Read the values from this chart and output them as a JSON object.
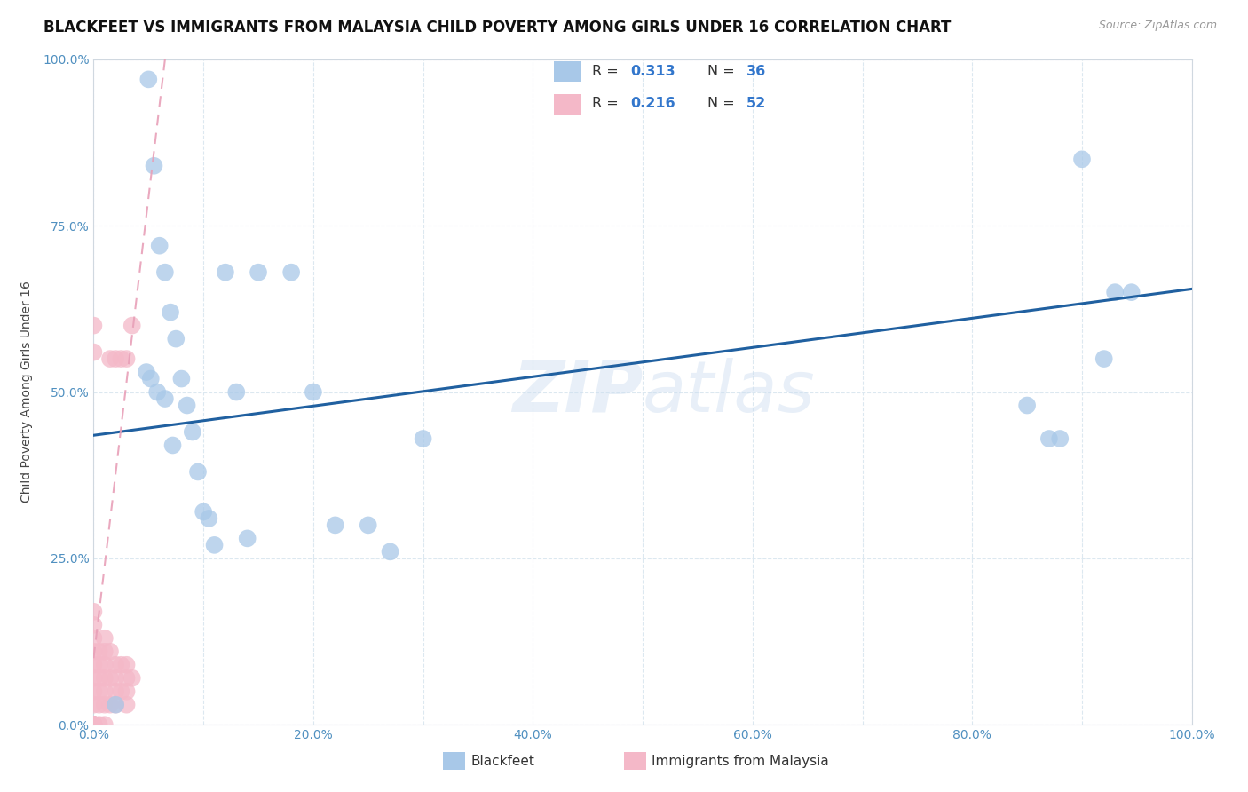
{
  "title": "BLACKFEET VS IMMIGRANTS FROM MALAYSIA CHILD POVERTY AMONG GIRLS UNDER 16 CORRELATION CHART",
  "source": "Source: ZipAtlas.com",
  "ylabel": "Child Poverty Among Girls Under 16",
  "xlim": [
    0,
    1.0
  ],
  "ylim": [
    0,
    1.0
  ],
  "xtick_labels": [
    "0.0%",
    "",
    "20.0%",
    "",
    "40.0%",
    "",
    "60.0%",
    "",
    "80.0%",
    "",
    "100.0%"
  ],
  "ytick_labels": [
    "0.0%",
    "25.0%",
    "50.0%",
    "75.0%",
    "100.0%"
  ],
  "ytick_positions": [
    0.0,
    0.25,
    0.5,
    0.75,
    1.0
  ],
  "xtick_positions": [
    0.0,
    0.1,
    0.2,
    0.3,
    0.4,
    0.5,
    0.6,
    0.7,
    0.8,
    0.9,
    1.0
  ],
  "color_blue": "#a8c8e8",
  "color_pink": "#f4b8c8",
  "color_trend_blue": "#2060a0",
  "color_trend_pink": "#e8a0b8",
  "watermark": "ZIPAtlas",
  "title_fontsize": 12,
  "axis_label_fontsize": 10,
  "tick_fontsize": 10,
  "blackfeet_x": [
    0.02,
    0.05,
    0.055,
    0.06,
    0.065,
    0.07,
    0.075,
    0.08,
    0.085,
    0.09,
    0.095,
    0.1,
    0.105,
    0.11,
    0.12,
    0.13,
    0.14,
    0.15,
    0.18,
    0.2,
    0.22,
    0.25,
    0.27,
    0.3,
    0.85,
    0.87,
    0.88,
    0.9,
    0.92,
    0.93,
    0.945,
    0.048,
    0.052,
    0.058,
    0.065,
    0.072
  ],
  "blackfeet_y": [
    0.03,
    0.97,
    0.84,
    0.72,
    0.68,
    0.62,
    0.58,
    0.52,
    0.48,
    0.44,
    0.38,
    0.32,
    0.31,
    0.27,
    0.68,
    0.5,
    0.28,
    0.68,
    0.68,
    0.5,
    0.3,
    0.3,
    0.26,
    0.43,
    0.48,
    0.43,
    0.43,
    0.85,
    0.55,
    0.65,
    0.65,
    0.53,
    0.52,
    0.5,
    0.49,
    0.42
  ],
  "malaysia_x": [
    0.0,
    0.0,
    0.0,
    0.0,
    0.0,
    0.0,
    0.0,
    0.0,
    0.0,
    0.0,
    0.0,
    0.0,
    0.0,
    0.0,
    0.0,
    0.0,
    0.0,
    0.0,
    0.0,
    0.0,
    0.005,
    0.005,
    0.005,
    0.005,
    0.005,
    0.005,
    0.01,
    0.01,
    0.01,
    0.01,
    0.01,
    0.01,
    0.01,
    0.015,
    0.015,
    0.015,
    0.015,
    0.02,
    0.02,
    0.02,
    0.02,
    0.02,
    0.025,
    0.025,
    0.025,
    0.03,
    0.03,
    0.03,
    0.03,
    0.03,
    0.035,
    0.035
  ],
  "malaysia_y": [
    0.0,
    0.0,
    0.0,
    0.0,
    0.0,
    0.0,
    0.0,
    0.0,
    0.0,
    0.0,
    0.03,
    0.05,
    0.07,
    0.09,
    0.11,
    0.13,
    0.15,
    0.17,
    0.56,
    0.6,
    0.0,
    0.03,
    0.05,
    0.07,
    0.09,
    0.11,
    0.0,
    0.03,
    0.05,
    0.07,
    0.09,
    0.11,
    0.13,
    0.03,
    0.07,
    0.11,
    0.55,
    0.03,
    0.05,
    0.07,
    0.09,
    0.55,
    0.05,
    0.09,
    0.55,
    0.03,
    0.05,
    0.07,
    0.09,
    0.55,
    0.07,
    0.6
  ],
  "blue_trend_x0": 0.0,
  "blue_trend_y0": 0.435,
  "blue_trend_x1": 1.0,
  "blue_trend_y1": 0.655,
  "pink_trend_x0": 0.0,
  "pink_trend_y0": 0.1,
  "pink_trend_x1": 0.065,
  "pink_trend_y1": 1.0
}
